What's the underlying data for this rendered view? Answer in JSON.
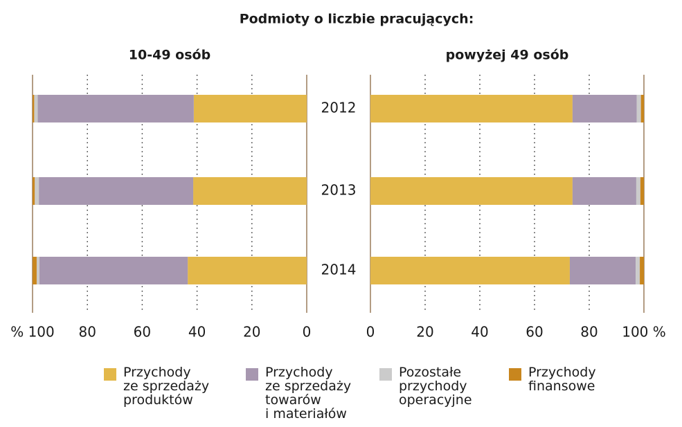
{
  "title": "Podmioty o liczbie pracujących:",
  "chart_data": [
    {
      "type": "stacked-bar-horizontal",
      "title": "10-49 osób",
      "categories": [
        "2012",
        "2013",
        "2014"
      ],
      "xlim": [
        100,
        0
      ],
      "xticks": [
        {
          "value": 100,
          "label": "% 100"
        },
        80,
        60,
        40,
        20,
        0
      ],
      "series": [
        {
          "name": "Przychody\nze sprzedaży\nproduktów",
          "color": "#e3b84a",
          "values": [
            41.2,
            41.4,
            43.4
          ]
        },
        {
          "name": "Przychody\nze sprzedaży\ntowarów\ni materiałów",
          "color": "#a797b0",
          "values": [
            56.9,
            56.3,
            54.1
          ]
        },
        {
          "name": "Pozostałe\nprzychody\noperacyjne",
          "color": "#cbcbcb",
          "values": [
            1.3,
            1.5,
            1.0
          ]
        },
        {
          "name": "Przychody\nfinansowe",
          "color": "#c8861e",
          "values": [
            0.6,
            0.8,
            1.5
          ]
        }
      ]
    },
    {
      "type": "stacked-bar-horizontal",
      "title": "powyżej 49 osób",
      "xlim": [
        0,
        100
      ],
      "xticks": [
        0,
        20,
        40,
        60,
        80,
        {
          "value": 100,
          "label": "100 %"
        }
      ],
      "series": [
        {
          "values": [
            73.9,
            73.9,
            72.9
          ]
        },
        {
          "values": [
            23.5,
            23.3,
            24.1
          ]
        },
        {
          "values": [
            1.5,
            1.5,
            1.5
          ]
        },
        {
          "values": [
            1.1,
            1.3,
            1.5
          ]
        }
      ]
    }
  ]
}
